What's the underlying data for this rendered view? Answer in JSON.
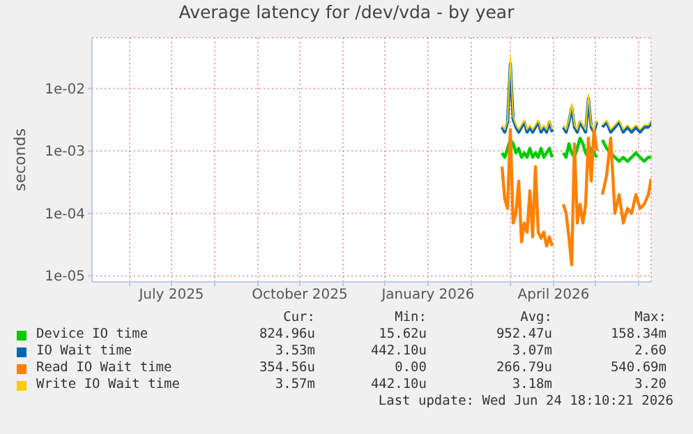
{
  "chart_data": {
    "type": "line",
    "title": "Average latency for /dev/vda - by year",
    "ylabel": "seconds",
    "log": "y",
    "grid": true,
    "legend": "bottom",
    "marker": "none",
    "line_style": "solid",
    "xlim": [
      "2025-05-05",
      "2026-06-10"
    ],
    "xticks": [
      {
        "value": "2025-06-01",
        "label": null
      },
      {
        "value": "2025-07-01",
        "label": "July 2025"
      },
      {
        "value": "2025-08-01",
        "label": null
      },
      {
        "value": "2025-09-01",
        "label": null
      },
      {
        "value": "2025-10-01",
        "label": "October 2025"
      },
      {
        "value": "2025-11-01",
        "label": null
      },
      {
        "value": "2025-12-01",
        "label": null
      },
      {
        "value": "2026-01-01",
        "label": "January 2026"
      },
      {
        "value": "2026-02-01",
        "label": null
      },
      {
        "value": "2026-03-01",
        "label": null
      },
      {
        "value": "2026-04-01",
        "label": "April 2026"
      },
      {
        "value": "2026-05-01",
        "label": null
      },
      {
        "value": "2026-06-01",
        "label": null
      }
    ],
    "ylim": [
      8e-06,
      0.065
    ],
    "yticks": [
      {
        "value": 1e-05,
        "label": "1e-05"
      },
      {
        "value": 0.0001,
        "label": "1e-04"
      },
      {
        "value": 0.001,
        "label": "1e-03"
      },
      {
        "value": 0.01,
        "label": "1e-02"
      }
    ],
    "x": [
      "2026-02-23",
      "2026-02-25",
      "2026-02-27",
      "2026-03-01",
      "2026-03-03",
      "2026-03-05",
      "2026-03-07",
      "2026-03-09",
      "2026-03-11",
      "2026-03-13",
      "2026-03-15",
      "2026-03-17",
      "2026-03-19",
      "2026-03-21",
      "2026-03-23",
      "2026-03-25",
      "2026-03-27",
      "2026-03-29",
      "2026-03-31",
      "2026-04-04",
      "2026-04-08",
      "2026-04-10",
      "2026-04-12",
      "2026-04-14",
      "2026-04-16",
      "2026-04-18",
      "2026-04-20",
      "2026-04-22",
      "2026-04-24",
      "2026-04-26",
      "2026-04-28",
      "2026-04-30",
      "2026-05-02",
      "2026-05-04",
      "2026-05-06",
      "2026-05-09",
      "2026-05-12",
      "2026-05-15",
      "2026-05-18",
      "2026-05-21",
      "2026-05-24",
      "2026-05-27",
      "2026-05-30",
      "2026-06-02",
      "2026-06-05",
      "2026-06-08",
      "2026-06-10"
    ],
    "series": [
      {
        "name": "Device IO time",
        "color": "#00cc00",
        "values": [
          0.00093,
          0.00079,
          0.0011,
          0.0015,
          0.0013,
          0.00093,
          0.0011,
          0.00079,
          0.00093,
          0.00079,
          0.0011,
          0.00079,
          0.00093,
          0.00079,
          0.0011,
          0.00079,
          0.00093,
          0.0011,
          0.00079,
          null,
          0.00093,
          0.00079,
          0.0013,
          0.00093,
          0.00079,
          0.0011,
          0.0016,
          0.0013,
          0.00093,
          0.00079,
          0.0011,
          0.00093,
          0.00079,
          null,
          0.0015,
          0.0011,
          0.00093,
          0.00079,
          0.00068,
          0.00079,
          0.00068,
          0.00079,
          0.00093,
          0.00079,
          0.00068,
          0.00079,
          0.00079
        ]
      },
      {
        "name": "IO Wait time",
        "color": "#0066b3",
        "values": [
          0.0024,
          0.002,
          0.0029,
          0.025,
          0.0032,
          0.0024,
          0.002,
          0.0024,
          0.0029,
          0.002,
          0.0024,
          0.002,
          0.0024,
          0.0029,
          0.002,
          0.0024,
          0.002,
          0.0029,
          0.002,
          null,
          0.0024,
          0.002,
          0.0029,
          0.005,
          0.0024,
          0.002,
          0.0029,
          0.0024,
          0.002,
          0.007,
          0.0024,
          0.002,
          0.0029,
          null,
          0.0024,
          0.0029,
          0.002,
          0.0024,
          0.0029,
          0.002,
          0.0024,
          0.002,
          0.0024,
          0.002,
          0.0024,
          0.0024,
          0.0029
        ]
      },
      {
        "name": "Read IO Wait time",
        "color": "#ff8000",
        "values": [
          0.00056,
          0.00017,
          0.00012,
          0.0022,
          7e-05,
          0.0001,
          0.00033,
          3.5e-05,
          7e-05,
          5e-05,
          0.00023,
          4.2e-05,
          0.00056,
          5e-05,
          4e-05,
          5e-05,
          3e-05,
          4.2e-05,
          3e-05,
          null,
          0.00014,
          0.0001,
          4.2e-05,
          1.5e-05,
          0.0013,
          7e-05,
          0.00014,
          7e-05,
          0.00014,
          0.0016,
          0.00033,
          0.0022,
          0.001,
          null,
          0.0002,
          0.0004,
          0.0016,
          0.0001,
          0.0002,
          7e-05,
          0.00012,
          0.0001,
          0.0002,
          0.00012,
          0.00014,
          0.0002,
          0.00036
        ]
      },
      {
        "name": "Write IO Wait time",
        "color": "#ffcc00",
        "values": [
          0.0026,
          0.0022,
          0.0031,
          0.032,
          0.0035,
          0.0026,
          0.0022,
          0.0026,
          0.0031,
          0.0022,
          0.0026,
          0.0022,
          0.0026,
          0.0031,
          0.0022,
          0.0026,
          0.0022,
          0.0031,
          0.0022,
          null,
          0.0026,
          0.0022,
          0.0031,
          0.0057,
          0.0026,
          0.0022,
          0.0031,
          0.0026,
          0.0022,
          0.008,
          0.0026,
          0.0022,
          0.0031,
          null,
          0.0026,
          0.0031,
          0.0022,
          0.0026,
          0.0031,
          0.0022,
          0.0026,
          0.0022,
          0.0026,
          0.0022,
          0.0026,
          0.0026,
          0.0031
        ]
      }
    ],
    "annotations": [
      "Cur:",
      "Min:",
      "Avg:",
      "Max:",
      "824.96u",
      "15.62u",
      "952.47u",
      "158.34m",
      "3.53m",
      "442.10u",
      "3.07m",
      "2.60",
      "354.56u",
      "0.00",
      "266.79u",
      "540.69m",
      "3.57m",
      "442.10u",
      "3.18m",
      "3.20",
      "Last update: Wed Jun 24 18:10:21 2026"
    ]
  }
}
